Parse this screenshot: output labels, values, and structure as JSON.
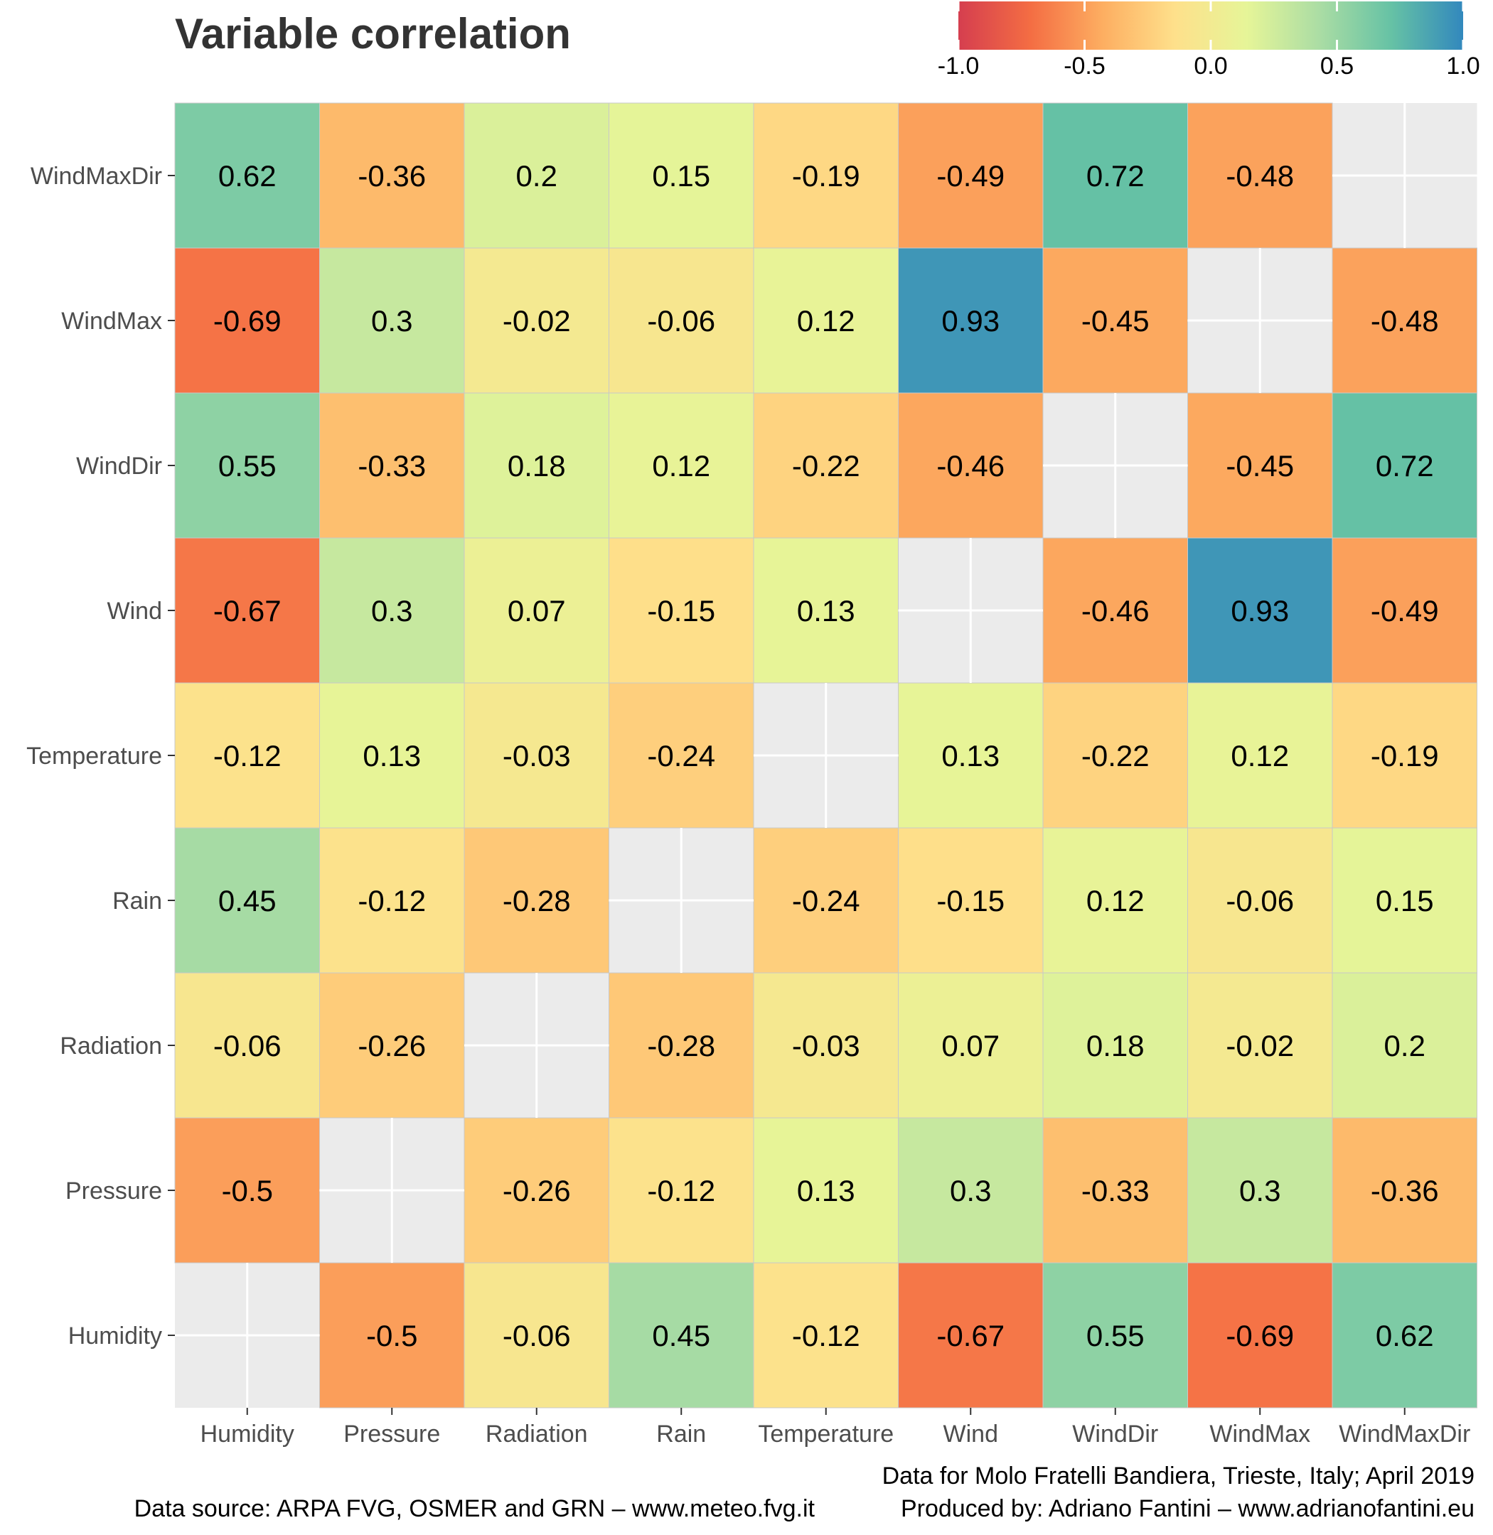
{
  "chart_data": {
    "type": "heatmap",
    "title": "Variable correlation",
    "variables": [
      "Humidity",
      "Pressure",
      "Radiation",
      "Rain",
      "Temperature",
      "Wind",
      "WindDir",
      "WindMax",
      "WindMaxDir"
    ],
    "values": [
      [
        null,
        -0.5,
        -0.06,
        0.45,
        -0.12,
        -0.67,
        0.55,
        -0.69,
        0.62
      ],
      [
        -0.5,
        null,
        -0.26,
        -0.12,
        0.13,
        0.3,
        -0.33,
        0.3,
        -0.36
      ],
      [
        -0.06,
        -0.26,
        null,
        -0.28,
        -0.03,
        0.07,
        0.18,
        -0.02,
        0.2
      ],
      [
        0.45,
        -0.12,
        -0.28,
        null,
        -0.24,
        -0.15,
        0.12,
        -0.06,
        0.15
      ],
      [
        -0.12,
        0.13,
        -0.03,
        -0.24,
        null,
        0.13,
        -0.22,
        0.12,
        -0.19
      ],
      [
        -0.67,
        0.3,
        0.07,
        -0.15,
        0.13,
        null,
        -0.46,
        0.93,
        -0.49
      ],
      [
        0.55,
        -0.33,
        0.18,
        0.12,
        -0.22,
        -0.46,
        null,
        -0.45,
        0.72
      ],
      [
        -0.69,
        0.3,
        -0.02,
        -0.06,
        0.12,
        0.93,
        -0.45,
        null,
        -0.48
      ],
      [
        0.62,
        -0.36,
        0.2,
        0.15,
        -0.19,
        -0.49,
        0.72,
        -0.48,
        null
      ]
    ],
    "legend": {
      "placement": "top-right",
      "range": [
        -1,
        1
      ],
      "ticks": [
        -1,
        -0.5,
        0,
        0.5,
        1
      ],
      "tick_labels": [
        "-1.0",
        "-0.5",
        "0.0",
        "0.5",
        "1.0"
      ],
      "colors": [
        "#d53e4f",
        "#f46d43",
        "#fdae61",
        "#fee08b",
        "#e6f598",
        "#abdda4",
        "#66c2a5",
        "#3288bd"
      ]
    },
    "na_color": "#ebebeb",
    "grid": true
  },
  "captions": {
    "line1_right": "Data for Molo Fratelli Bandiera, Trieste, Italy; April 2019",
    "line2_left": "Data source: ARPA FVG, OSMER and GRN – www.meteo.fvg.it",
    "line2_right": "Produced by: Adriano Fantini  – www.adrianofantini.eu"
  }
}
